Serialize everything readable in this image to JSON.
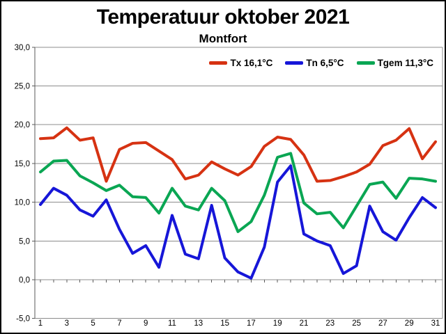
{
  "title": "Temperatuur oktober 2021",
  "subtitle": "Montfort",
  "legend": {
    "items": [
      {
        "label": "Tx 16,1°C",
        "color": "#D63212"
      },
      {
        "label": "Tn 6,5°C",
        "color": "#1616D8"
      },
      {
        "label": "Tgem 11,3°C",
        "color": "#0AA653"
      }
    ]
  },
  "chart_data": {
    "type": "line",
    "title": "Temperatuur oktober 2021",
    "subtitle": "Montfort",
    "x": [
      1,
      2,
      3,
      4,
      5,
      6,
      7,
      8,
      9,
      10,
      11,
      12,
      13,
      14,
      15,
      16,
      17,
      18,
      19,
      20,
      21,
      22,
      23,
      24,
      25,
      26,
      27,
      28,
      29,
      30,
      31
    ],
    "series": [
      {
        "name": "Tx",
        "mean": 16.1,
        "color": "#D63212",
        "values": [
          18.2,
          18.3,
          19.6,
          18.0,
          18.3,
          12.7,
          16.8,
          17.6,
          17.7,
          16.6,
          15.5,
          13.0,
          13.5,
          15.2,
          14.3,
          13.5,
          14.6,
          17.2,
          18.4,
          18.1,
          16.1,
          12.7,
          12.8,
          13.3,
          13.9,
          14.9,
          17.3,
          18.0,
          19.5,
          15.6,
          17.8
        ]
      },
      {
        "name": "Tn",
        "mean": 6.5,
        "color": "#1616D8",
        "values": [
          9.7,
          11.8,
          10.9,
          9.0,
          8.2,
          10.3,
          6.5,
          3.4,
          4.4,
          1.6,
          8.3,
          3.3,
          2.7,
          9.6,
          2.8,
          1.0,
          0.2,
          4.2,
          12.6,
          14.7,
          5.9,
          5.0,
          4.4,
          0.8,
          1.8,
          9.5,
          6.2,
          5.1,
          8.0,
          10.6,
          9.3
        ]
      },
      {
        "name": "Tgem",
        "mean": 11.3,
        "color": "#0AA653",
        "values": [
          13.9,
          15.3,
          15.4,
          13.4,
          12.5,
          11.5,
          12.2,
          10.7,
          10.6,
          8.6,
          11.8,
          9.5,
          9.0,
          11.8,
          10.2,
          6.2,
          7.5,
          10.9,
          15.8,
          16.3,
          9.9,
          8.5,
          8.7,
          6.7,
          9.5,
          12.3,
          12.6,
          10.5,
          13.1,
          13.0,
          12.7
        ]
      }
    ],
    "ylim": [
      -5,
      30
    ],
    "y_ticks": {
      "values": [
        30,
        25,
        20,
        15,
        10,
        5,
        0,
        -5
      ],
      "labels": [
        "30,0",
        "25,0",
        "20,0",
        "15,0",
        "10,0",
        "5,0",
        "0,0",
        "-5,0"
      ]
    },
    "x_tick_labels": [
      "1",
      "3",
      "5",
      "7",
      "9",
      "11",
      "13",
      "15",
      "17",
      "19",
      "21",
      "23",
      "25",
      "27",
      "29",
      "31"
    ],
    "grid": true,
    "legend_position": "top"
  }
}
